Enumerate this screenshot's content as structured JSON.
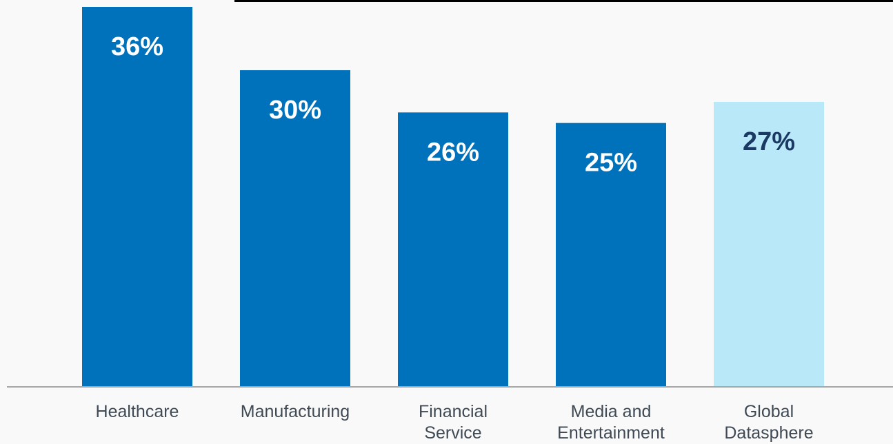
{
  "chart_data": {
    "type": "bar",
    "categories": [
      [
        "Healthcare"
      ],
      [
        "Manufacturing"
      ],
      [
        "Financial",
        "Service"
      ],
      [
        "Media and",
        "Entertainment"
      ],
      [
        "Global",
        "Datasphere"
      ]
    ],
    "values": [
      36,
      30,
      26,
      25,
      27
    ],
    "value_labels": [
      "36%",
      "30%",
      "26%",
      "25%",
      "27%"
    ],
    "ylim": [
      0,
      36
    ],
    "grid": false,
    "colors": {
      "bar": "#0072bc",
      "highlight_bar": "#b9e8f8",
      "label_on_bar": "#ffffff",
      "label_on_highlight": "#1b3a63",
      "axis": "#a6a6a6",
      "top_rule": "#000000"
    },
    "highlight_index": 4
  }
}
